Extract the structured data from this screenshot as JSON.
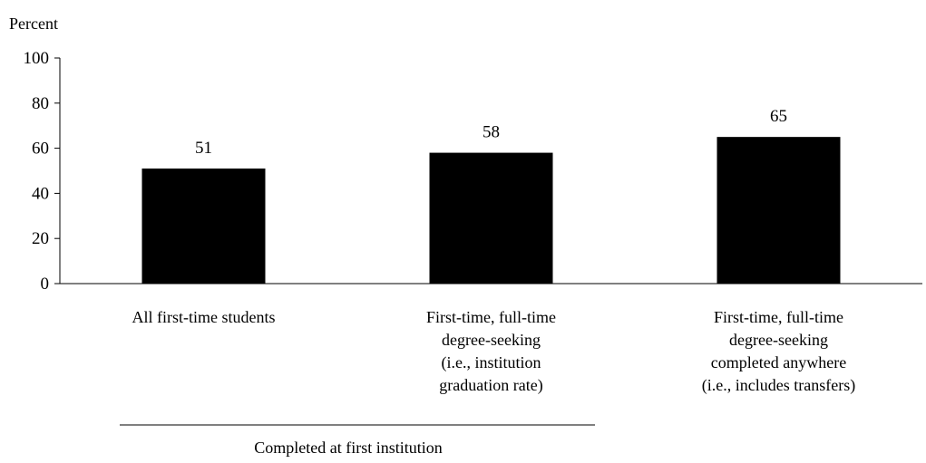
{
  "chart_data": {
    "type": "bar",
    "ylabel": "Percent",
    "ylim": [
      0,
      100
    ],
    "yticks": [
      0,
      20,
      40,
      60,
      80,
      100
    ],
    "grid": false,
    "bar_color": "#000000",
    "categories": [
      [
        "All first-time students"
      ],
      [
        "First-time, full-time",
        "degree-seeking",
        "(i.e., institution",
        "graduation rate)"
      ],
      [
        "First-time, full-time",
        "degree-seeking",
        "completed anywhere",
        "(i.e., includes transfers)"
      ]
    ],
    "values": [
      51,
      58,
      65
    ],
    "group_label": "Completed at first institution"
  }
}
